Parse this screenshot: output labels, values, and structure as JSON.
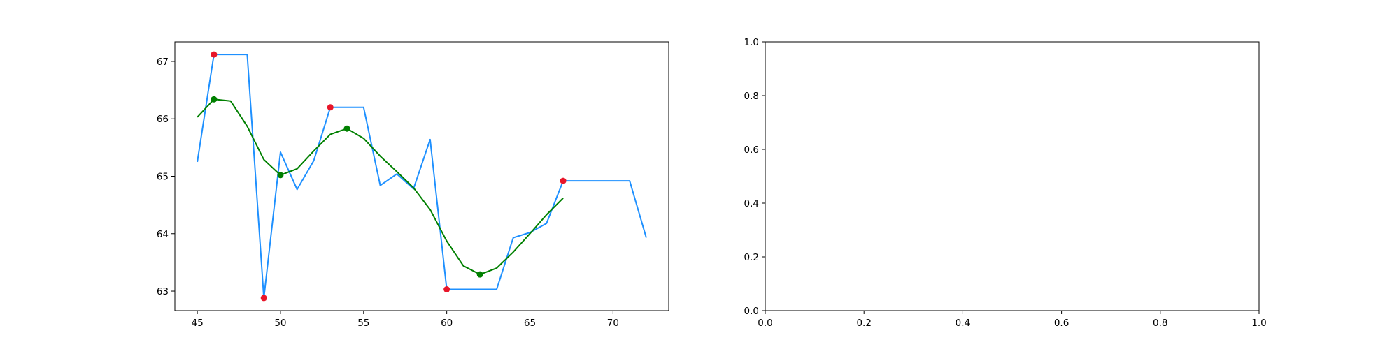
{
  "chart_data": [
    {
      "type": "line",
      "title": "",
      "xlabel": "",
      "ylabel": "",
      "xlim": [
        43.65,
        73.35
      ],
      "ylim": [
        62.66,
        67.34
      ],
      "xticks": [
        45,
        50,
        55,
        60,
        65,
        70
      ],
      "yticks": [
        63,
        64,
        65,
        66,
        67
      ],
      "grid": false,
      "series": [
        {
          "kind": "line",
          "color": "#1e90ff",
          "x": [
            45,
            46,
            47,
            48,
            49,
            50,
            51,
            52,
            53,
            54,
            55,
            56,
            57,
            58,
            59,
            60,
            61,
            62,
            63,
            64,
            65,
            66,
            67,
            68,
            69,
            70,
            71,
            72
          ],
          "y": [
            65.25,
            67.12,
            67.12,
            67.12,
            62.88,
            65.42,
            64.77,
            65.27,
            66.2,
            66.2,
            66.2,
            64.84,
            65.04,
            64.78,
            65.64,
            63.03,
            63.03,
            63.03,
            63.03,
            63.93,
            64.02,
            64.18,
            64.92,
            64.92,
            64.92,
            64.92,
            64.92,
            63.93
          ]
        },
        {
          "kind": "line",
          "color": "#008000",
          "x": [
            45,
            46,
            47,
            48,
            49,
            50,
            51,
            52,
            53,
            54,
            55,
            56,
            57,
            58,
            59,
            60,
            61,
            62,
            63,
            64,
            65,
            66,
            67
          ],
          "y": [
            66.03,
            66.34,
            66.31,
            65.87,
            65.29,
            65.02,
            65.13,
            65.44,
            65.73,
            65.83,
            65.66,
            65.35,
            65.08,
            64.8,
            64.42,
            63.87,
            63.44,
            63.29,
            63.4,
            63.68,
            64.0,
            64.33,
            64.62
          ]
        },
        {
          "kind": "scatter",
          "color": "#e8162a",
          "x": [
            46,
            49,
            53,
            60,
            67
          ],
          "y": [
            67.12,
            62.88,
            66.2,
            63.03,
            64.92
          ]
        },
        {
          "kind": "scatter",
          "color": "#008000",
          "x": [
            46,
            50,
            54,
            62
          ],
          "y": [
            66.34,
            65.02,
            65.83,
            63.29
          ]
        }
      ]
    },
    {
      "type": "line",
      "title": "",
      "xlabel": "",
      "ylabel": "",
      "xlim": [
        0,
        1
      ],
      "ylim": [
        0,
        1
      ],
      "xticks": [
        "0.0",
        "0.2",
        "0.4",
        "0.6",
        "0.8",
        "1.0"
      ],
      "yticks": [
        "0.0",
        "0.2",
        "0.4",
        "0.6",
        "0.8",
        "1.0"
      ],
      "grid": false,
      "series": []
    }
  ]
}
